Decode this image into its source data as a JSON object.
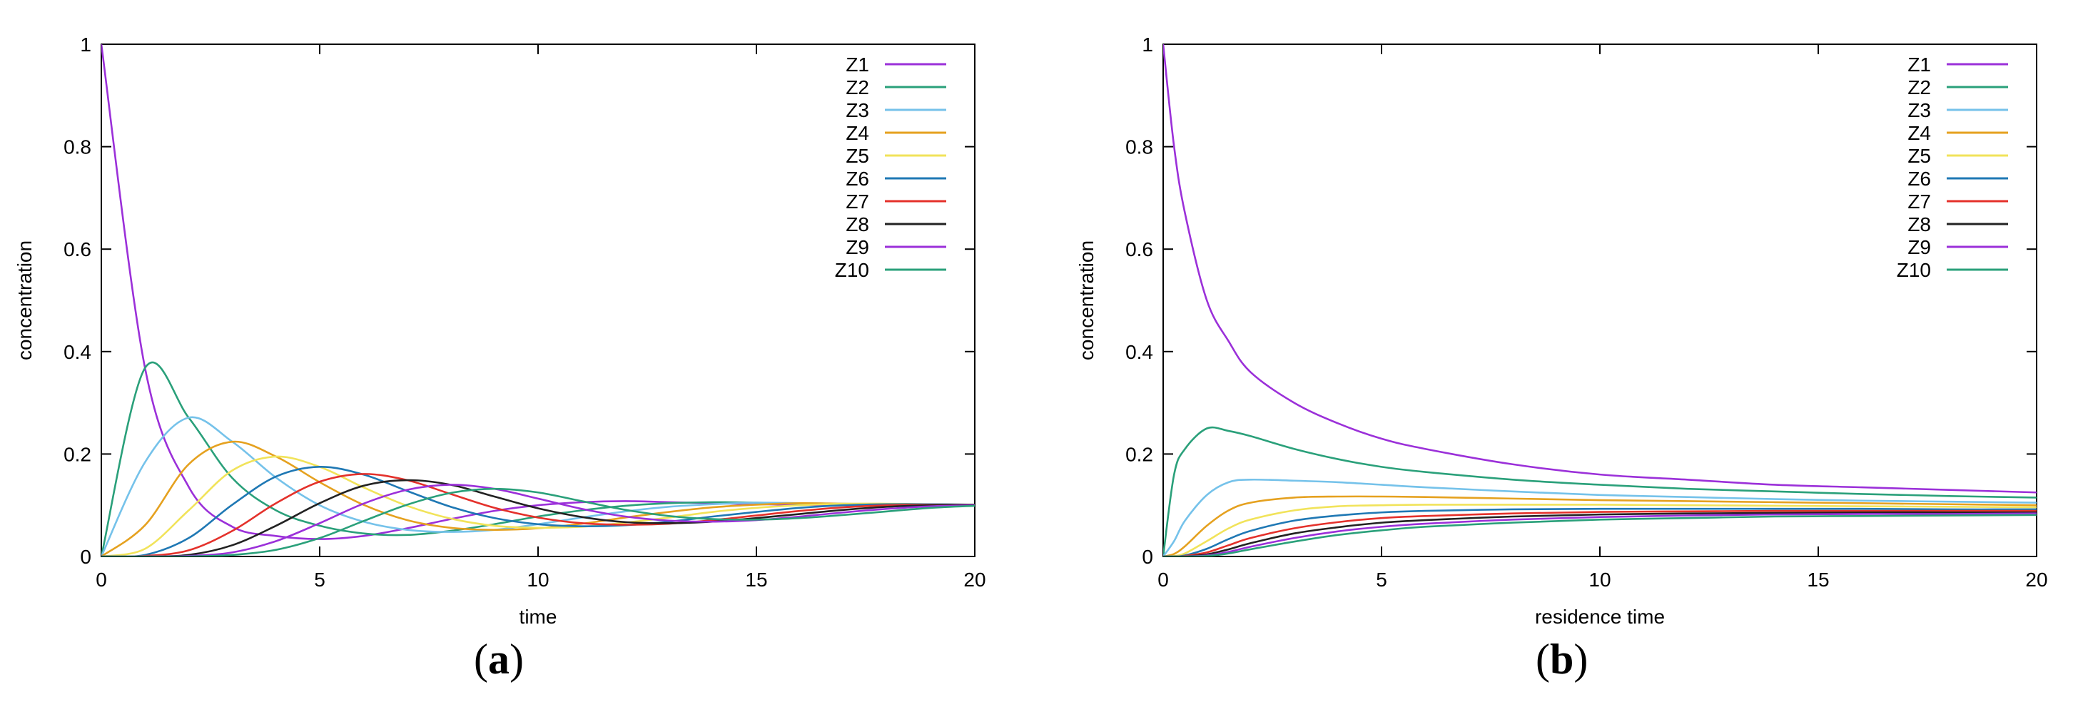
{
  "series_colors": [
    "#9b30d9",
    "#2aa07a",
    "#75c2ea",
    "#e5a11f",
    "#f1e35a",
    "#1f78b4",
    "#e4312b",
    "#222222",
    "#9b30d9",
    "#2aa07a"
  ],
  "series_names": [
    "Z1",
    "Z2",
    "Z3",
    "Z4",
    "Z5",
    "Z6",
    "Z7",
    "Z8",
    "Z9",
    "Z10"
  ],
  "panel_labels": [
    "a",
    "b"
  ],
  "chart_data": [
    {
      "type": "line",
      "xlabel": "time",
      "ylabel": "concentration",
      "xlim": [
        0,
        20
      ],
      "ylim": [
        0,
        1
      ],
      "xticks": [
        "0",
        "5",
        "10",
        "15",
        "20"
      ],
      "yticks": [
        "0",
        "0.2",
        "0.4",
        "0.6",
        "0.8",
        "1"
      ],
      "legend_position": "top-right",
      "grid": false,
      "x": [
        0,
        1,
        2,
        3,
        4,
        5,
        6,
        7,
        8,
        9,
        10,
        11,
        12,
        13,
        14,
        15,
        16,
        17,
        18,
        19,
        20
      ],
      "series": [
        {
          "name": "Z1",
          "values": [
            1.0,
            0.368,
            0.136,
            0.058,
            0.04,
            0.034,
            0.04,
            0.055,
            0.073,
            0.089,
            0.1,
            0.106,
            0.108,
            0.106,
            0.104,
            0.102,
            0.101,
            0.1,
            0.1,
            0.1,
            0.1
          ]
        },
        {
          "name": "Z2",
          "values": [
            0.0,
            0.368,
            0.271,
            0.153,
            0.09,
            0.06,
            0.045,
            0.042,
            0.05,
            0.063,
            0.078,
            0.09,
            0.099,
            0.104,
            0.106,
            0.105,
            0.103,
            0.102,
            0.1,
            0.1,
            0.1
          ]
        },
        {
          "name": "Z3",
          "values": [
            0.0,
            0.184,
            0.271,
            0.224,
            0.154,
            0.1,
            0.068,
            0.052,
            0.048,
            0.052,
            0.063,
            0.076,
            0.088,
            0.097,
            0.102,
            0.105,
            0.104,
            0.103,
            0.101,
            0.1,
            0.1
          ]
        },
        {
          "name": "Z4",
          "values": [
            0.0,
            0.061,
            0.18,
            0.224,
            0.195,
            0.145,
            0.101,
            0.071,
            0.056,
            0.052,
            0.055,
            0.064,
            0.076,
            0.087,
            0.096,
            0.101,
            0.104,
            0.103,
            0.102,
            0.101,
            0.1
          ]
        },
        {
          "name": "Z5",
          "values": [
            0.0,
            0.015,
            0.09,
            0.168,
            0.195,
            0.175,
            0.135,
            0.099,
            0.074,
            0.06,
            0.056,
            0.058,
            0.066,
            0.076,
            0.087,
            0.095,
            0.1,
            0.103,
            0.103,
            0.102,
            0.101
          ]
        },
        {
          "name": "Z6",
          "values": [
            0.0,
            0.003,
            0.036,
            0.101,
            0.156,
            0.175,
            0.16,
            0.128,
            0.097,
            0.075,
            0.063,
            0.059,
            0.061,
            0.068,
            0.078,
            0.087,
            0.095,
            0.1,
            0.102,
            0.102,
            0.101
          ]
        },
        {
          "name": "Z7",
          "values": [
            0.0,
            0.001,
            0.012,
            0.05,
            0.104,
            0.146,
            0.161,
            0.149,
            0.122,
            0.095,
            0.076,
            0.065,
            0.062,
            0.064,
            0.071,
            0.08,
            0.089,
            0.096,
            0.1,
            0.101,
            0.101
          ]
        },
        {
          "name": "Z8",
          "values": [
            0.0,
            0.0,
            0.003,
            0.022,
            0.06,
            0.104,
            0.138,
            0.149,
            0.14,
            0.117,
            0.094,
            0.077,
            0.067,
            0.065,
            0.068,
            0.075,
            0.083,
            0.091,
            0.097,
            0.1,
            0.101
          ]
        },
        {
          "name": "Z9",
          "values": [
            0.0,
            0.0,
            0.001,
            0.008,
            0.03,
            0.065,
            0.103,
            0.13,
            0.14,
            0.132,
            0.113,
            0.093,
            0.078,
            0.07,
            0.068,
            0.071,
            0.078,
            0.086,
            0.093,
            0.098,
            0.1
          ]
        },
        {
          "name": "Z10",
          "values": [
            0.0,
            0.0,
            0.0,
            0.003,
            0.013,
            0.036,
            0.069,
            0.101,
            0.124,
            0.132,
            0.125,
            0.108,
            0.091,
            0.079,
            0.073,
            0.072,
            0.075,
            0.081,
            0.088,
            0.095,
            0.099
          ]
        }
      ]
    },
    {
      "type": "line",
      "xlabel": "residence time",
      "ylabel": "concentration",
      "xlim": [
        0,
        20
      ],
      "ylim": [
        0,
        1
      ],
      "xticks": [
        "0",
        "5",
        "10",
        "15",
        "20"
      ],
      "yticks": [
        "0",
        "0.2",
        "0.4",
        "0.6",
        "0.8",
        "1"
      ],
      "legend_position": "top-right",
      "grid": false,
      "x": [
        0,
        0.25,
        0.5,
        1,
        1.5,
        2,
        3,
        4,
        5,
        6,
        8,
        10,
        12,
        14,
        16,
        18,
        20
      ],
      "series": [
        {
          "name": "Z1",
          "values": [
            1.0,
            0.8,
            0.67,
            0.5,
            0.42,
            0.36,
            0.3,
            0.26,
            0.23,
            0.21,
            0.18,
            0.16,
            0.15,
            0.14,
            0.135,
            0.13,
            0.125
          ]
        },
        {
          "name": "Z2",
          "values": [
            0.0,
            0.16,
            0.21,
            0.25,
            0.245,
            0.235,
            0.21,
            0.19,
            0.175,
            0.165,
            0.15,
            0.14,
            0.132,
            0.127,
            0.122,
            0.118,
            0.115
          ]
        },
        {
          "name": "Z3",
          "values": [
            0.0,
            0.03,
            0.07,
            0.12,
            0.145,
            0.15,
            0.148,
            0.145,
            0.14,
            0.135,
            0.127,
            0.12,
            0.116,
            0.112,
            0.109,
            0.107,
            0.105
          ]
        },
        {
          "name": "Z4",
          "values": [
            0.0,
            0.005,
            0.02,
            0.06,
            0.09,
            0.105,
            0.115,
            0.117,
            0.117,
            0.116,
            0.113,
            0.11,
            0.108,
            0.106,
            0.104,
            0.102,
            0.1
          ]
        },
        {
          "name": "Z5",
          "values": [
            0.0,
            0.001,
            0.006,
            0.03,
            0.055,
            0.072,
            0.09,
            0.098,
            0.1,
            0.101,
            0.101,
            0.101,
            0.1,
            0.099,
            0.098,
            0.097,
            0.096
          ]
        },
        {
          "name": "Z6",
          "values": [
            0.0,
            0.0,
            0.002,
            0.015,
            0.034,
            0.05,
            0.07,
            0.08,
            0.086,
            0.089,
            0.092,
            0.093,
            0.093,
            0.093,
            0.093,
            0.092,
            0.092
          ]
        },
        {
          "name": "Z7",
          "values": [
            0.0,
            0.0,
            0.001,
            0.008,
            0.022,
            0.036,
            0.055,
            0.067,
            0.075,
            0.079,
            0.084,
            0.087,
            0.088,
            0.089,
            0.089,
            0.089,
            0.089
          ]
        },
        {
          "name": "Z8",
          "values": [
            0.0,
            0.0,
            0.0,
            0.004,
            0.014,
            0.026,
            0.045,
            0.057,
            0.066,
            0.071,
            0.078,
            0.082,
            0.084,
            0.085,
            0.086,
            0.086,
            0.086
          ]
        },
        {
          "name": "Z9",
          "values": [
            0.0,
            0.0,
            0.0,
            0.002,
            0.009,
            0.019,
            0.036,
            0.049,
            0.058,
            0.064,
            0.072,
            0.077,
            0.08,
            0.082,
            0.083,
            0.083,
            0.084
          ]
        },
        {
          "name": "Z10",
          "values": [
            0.0,
            0.0,
            0.0,
            0.001,
            0.006,
            0.014,
            0.029,
            0.042,
            0.051,
            0.058,
            0.066,
            0.072,
            0.075,
            0.078,
            0.079,
            0.08,
            0.081
          ]
        }
      ]
    }
  ]
}
